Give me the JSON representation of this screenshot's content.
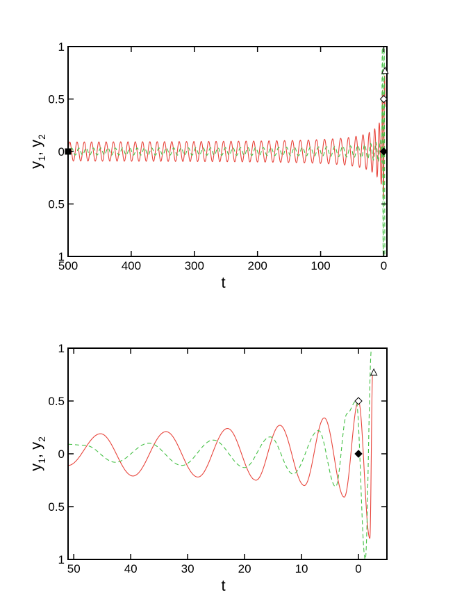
{
  "chart_data": [
    {
      "type": "line",
      "title": "",
      "xlabel": "t",
      "ylabel": {
        "base": "y",
        "sub1": "1",
        "sep": ", ",
        "sub2": "2"
      },
      "xlim": [
        500,
        -5
      ],
      "ylim": [
        -1,
        1
      ],
      "x_reversed": true,
      "x_ticks": [
        500,
        400,
        300,
        200,
        100,
        0
      ],
      "x_tick_labels": [
        "500",
        "400",
        "300",
        "200",
        "100",
        "0"
      ],
      "y_ticks": [
        1,
        0.5,
        0,
        -0.5,
        -1
      ],
      "y_tick_labels": [
        "1",
        "0.5",
        "0",
        "0.5",
        "1"
      ],
      "grid": false,
      "legend": "none",
      "series": [
        {
          "key": "y1",
          "color": "#e8453c",
          "style": "solid",
          "samples": 3000,
          "values": [
            [
              500,
              -0.05
            ],
            [
              480,
              0.08
            ],
            [
              400,
              -0.08
            ],
            [
              300,
              -0.09
            ],
            [
              200,
              0.1
            ],
            [
              100,
              -0.14
            ],
            [
              50,
              -0.21
            ],
            [
              20,
              0.3
            ],
            [
              5,
              -0.45
            ],
            [
              0,
              0.5
            ],
            [
              -2,
              0.78
            ]
          ]
        },
        {
          "key": "y2",
          "color": "#44c044",
          "style": "dashed",
          "samples": 3000,
          "values": [
            [
              500,
              0.03
            ],
            [
              400,
              0.03
            ],
            [
              300,
              -0.04
            ],
            [
              200,
              0.05
            ],
            [
              100,
              -0.07
            ],
            [
              50,
              0.1
            ],
            [
              10,
              0.2
            ],
            [
              0,
              0.5
            ],
            [
              -2,
              1.0
            ]
          ]
        }
      ],
      "markers": [
        {
          "name": "start-square-marker",
          "shape": "square",
          "fill": "#000000",
          "x": 500,
          "y": 0
        },
        {
          "name": "diamond-filled-marker",
          "shape": "diamond",
          "fill": "#000000",
          "x": 0,
          "y": 0
        },
        {
          "name": "diamond-open-marker",
          "shape": "diamond",
          "fill": "#ffffff",
          "x": 0,
          "y": 0.5
        },
        {
          "name": "triangle-open-marker",
          "shape": "triangle",
          "fill": "#ffffff",
          "x": -2,
          "y": 0.77
        }
      ]
    },
    {
      "type": "line",
      "title": "",
      "xlabel": "t",
      "ylabel": {
        "base": "y",
        "sub1": "1",
        "sep": ", ",
        "sub2": "2"
      },
      "xlim": [
        51,
        -5
      ],
      "ylim": [
        -1,
        1
      ],
      "x_reversed": true,
      "x_ticks": [
        50,
        40,
        30,
        20,
        10,
        0
      ],
      "x_tick_labels": [
        "50",
        "40",
        "30",
        "20",
        "10",
        "0"
      ],
      "y_ticks": [
        1,
        0.5,
        0,
        -0.5,
        -1
      ],
      "y_tick_labels": [
        "1",
        "0.5",
        "0",
        "0.5",
        "1"
      ],
      "grid": false,
      "legend": "none",
      "series": [
        {
          "key": "y1",
          "color": "#e8453c",
          "style": "solid",
          "samples": 900,
          "points": [
            [
              51,
              -0.11
            ],
            [
              45.3,
              0.19
            ],
            [
              39.6,
              -0.21
            ],
            [
              33.8,
              0.21
            ],
            [
              28.2,
              -0.22
            ],
            [
              23,
              0.24
            ],
            [
              18,
              -0.25
            ],
            [
              13.8,
              0.27
            ],
            [
              9.5,
              -0.3
            ],
            [
              6,
              0.34
            ],
            [
              2.5,
              -0.41
            ],
            [
              0,
              0.5
            ],
            [
              -2,
              -0.8
            ],
            [
              -2.5,
              0.77
            ]
          ]
        },
        {
          "key": "y2",
          "color": "#44c044",
          "style": "dashed",
          "samples": 900,
          "points": [
            [
              51,
              0.09
            ],
            [
              48,
              0.08
            ],
            [
              42.7,
              -0.08
            ],
            [
              36.8,
              0.1
            ],
            [
              31,
              -0.11
            ],
            [
              25.5,
              0.13
            ],
            [
              20,
              -0.13
            ],
            [
              15.5,
              0.16
            ],
            [
              11.5,
              -0.19
            ],
            [
              7,
              0.22
            ],
            [
              4,
              -0.31
            ],
            [
              2,
              0.38
            ],
            [
              0.4,
              0.5
            ],
            [
              -1.2,
              -1.0
            ],
            [
              -2.3,
              1.0
            ]
          ]
        }
      ],
      "markers": [
        {
          "name": "diamond-filled-marker",
          "shape": "diamond",
          "fill": "#000000",
          "x": 0,
          "y": 0
        },
        {
          "name": "diamond-open-marker",
          "shape": "diamond",
          "fill": "#ffffff",
          "x": 0,
          "y": 0.5
        },
        {
          "name": "triangle-open-marker",
          "shape": "triangle",
          "fill": "#ffffff",
          "x": -2.7,
          "y": 0.77
        }
      ]
    }
  ]
}
